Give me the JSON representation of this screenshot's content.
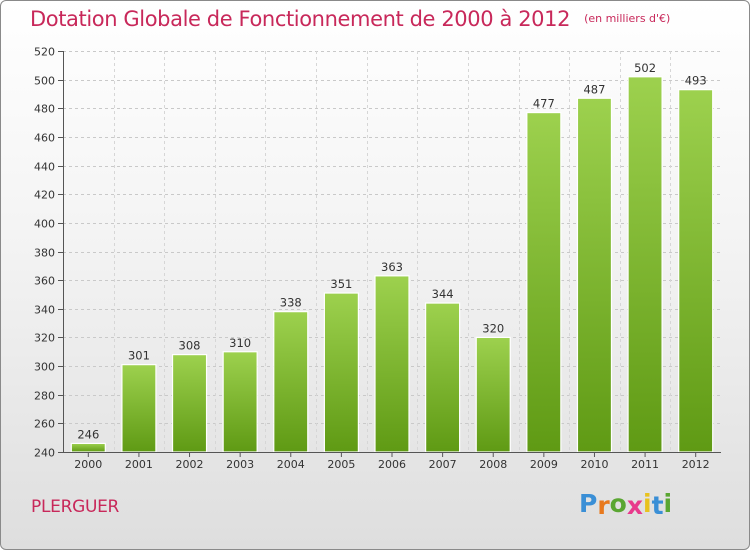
{
  "title": "Dotation Globale de Fonctionnement de 2000 à 2012",
  "unit": "(en milliers d'€)",
  "commune": "PLERGUER",
  "logo": {
    "letters": [
      "P",
      "r",
      "o",
      "x",
      "i",
      "t",
      "i"
    ],
    "colors": [
      "#3a8fd6",
      "#e8791e",
      "#5aa632",
      "#e83a8c",
      "#e8c21e",
      "#3a8fd6",
      "#5aa632"
    ]
  },
  "colors": {
    "bar_top": "#9dd14e",
    "bar_bottom": "#5f9a14",
    "title": "#c8285a"
  },
  "chart_data": {
    "type": "bar",
    "categories": [
      "2000",
      "2001",
      "2002",
      "2003",
      "2004",
      "2005",
      "2006",
      "2007",
      "2008",
      "2009",
      "2010",
      "2011",
      "2012"
    ],
    "values": [
      246,
      301,
      308,
      310,
      338,
      351,
      363,
      344,
      320,
      477,
      487,
      502,
      493
    ],
    "ylim": [
      240,
      520
    ],
    "yticks": [
      240,
      260,
      280,
      300,
      320,
      340,
      360,
      380,
      400,
      420,
      440,
      460,
      480,
      500,
      520
    ],
    "grid": true,
    "title": "Dotation Globale de Fonctionnement de 2000 à 2012"
  }
}
